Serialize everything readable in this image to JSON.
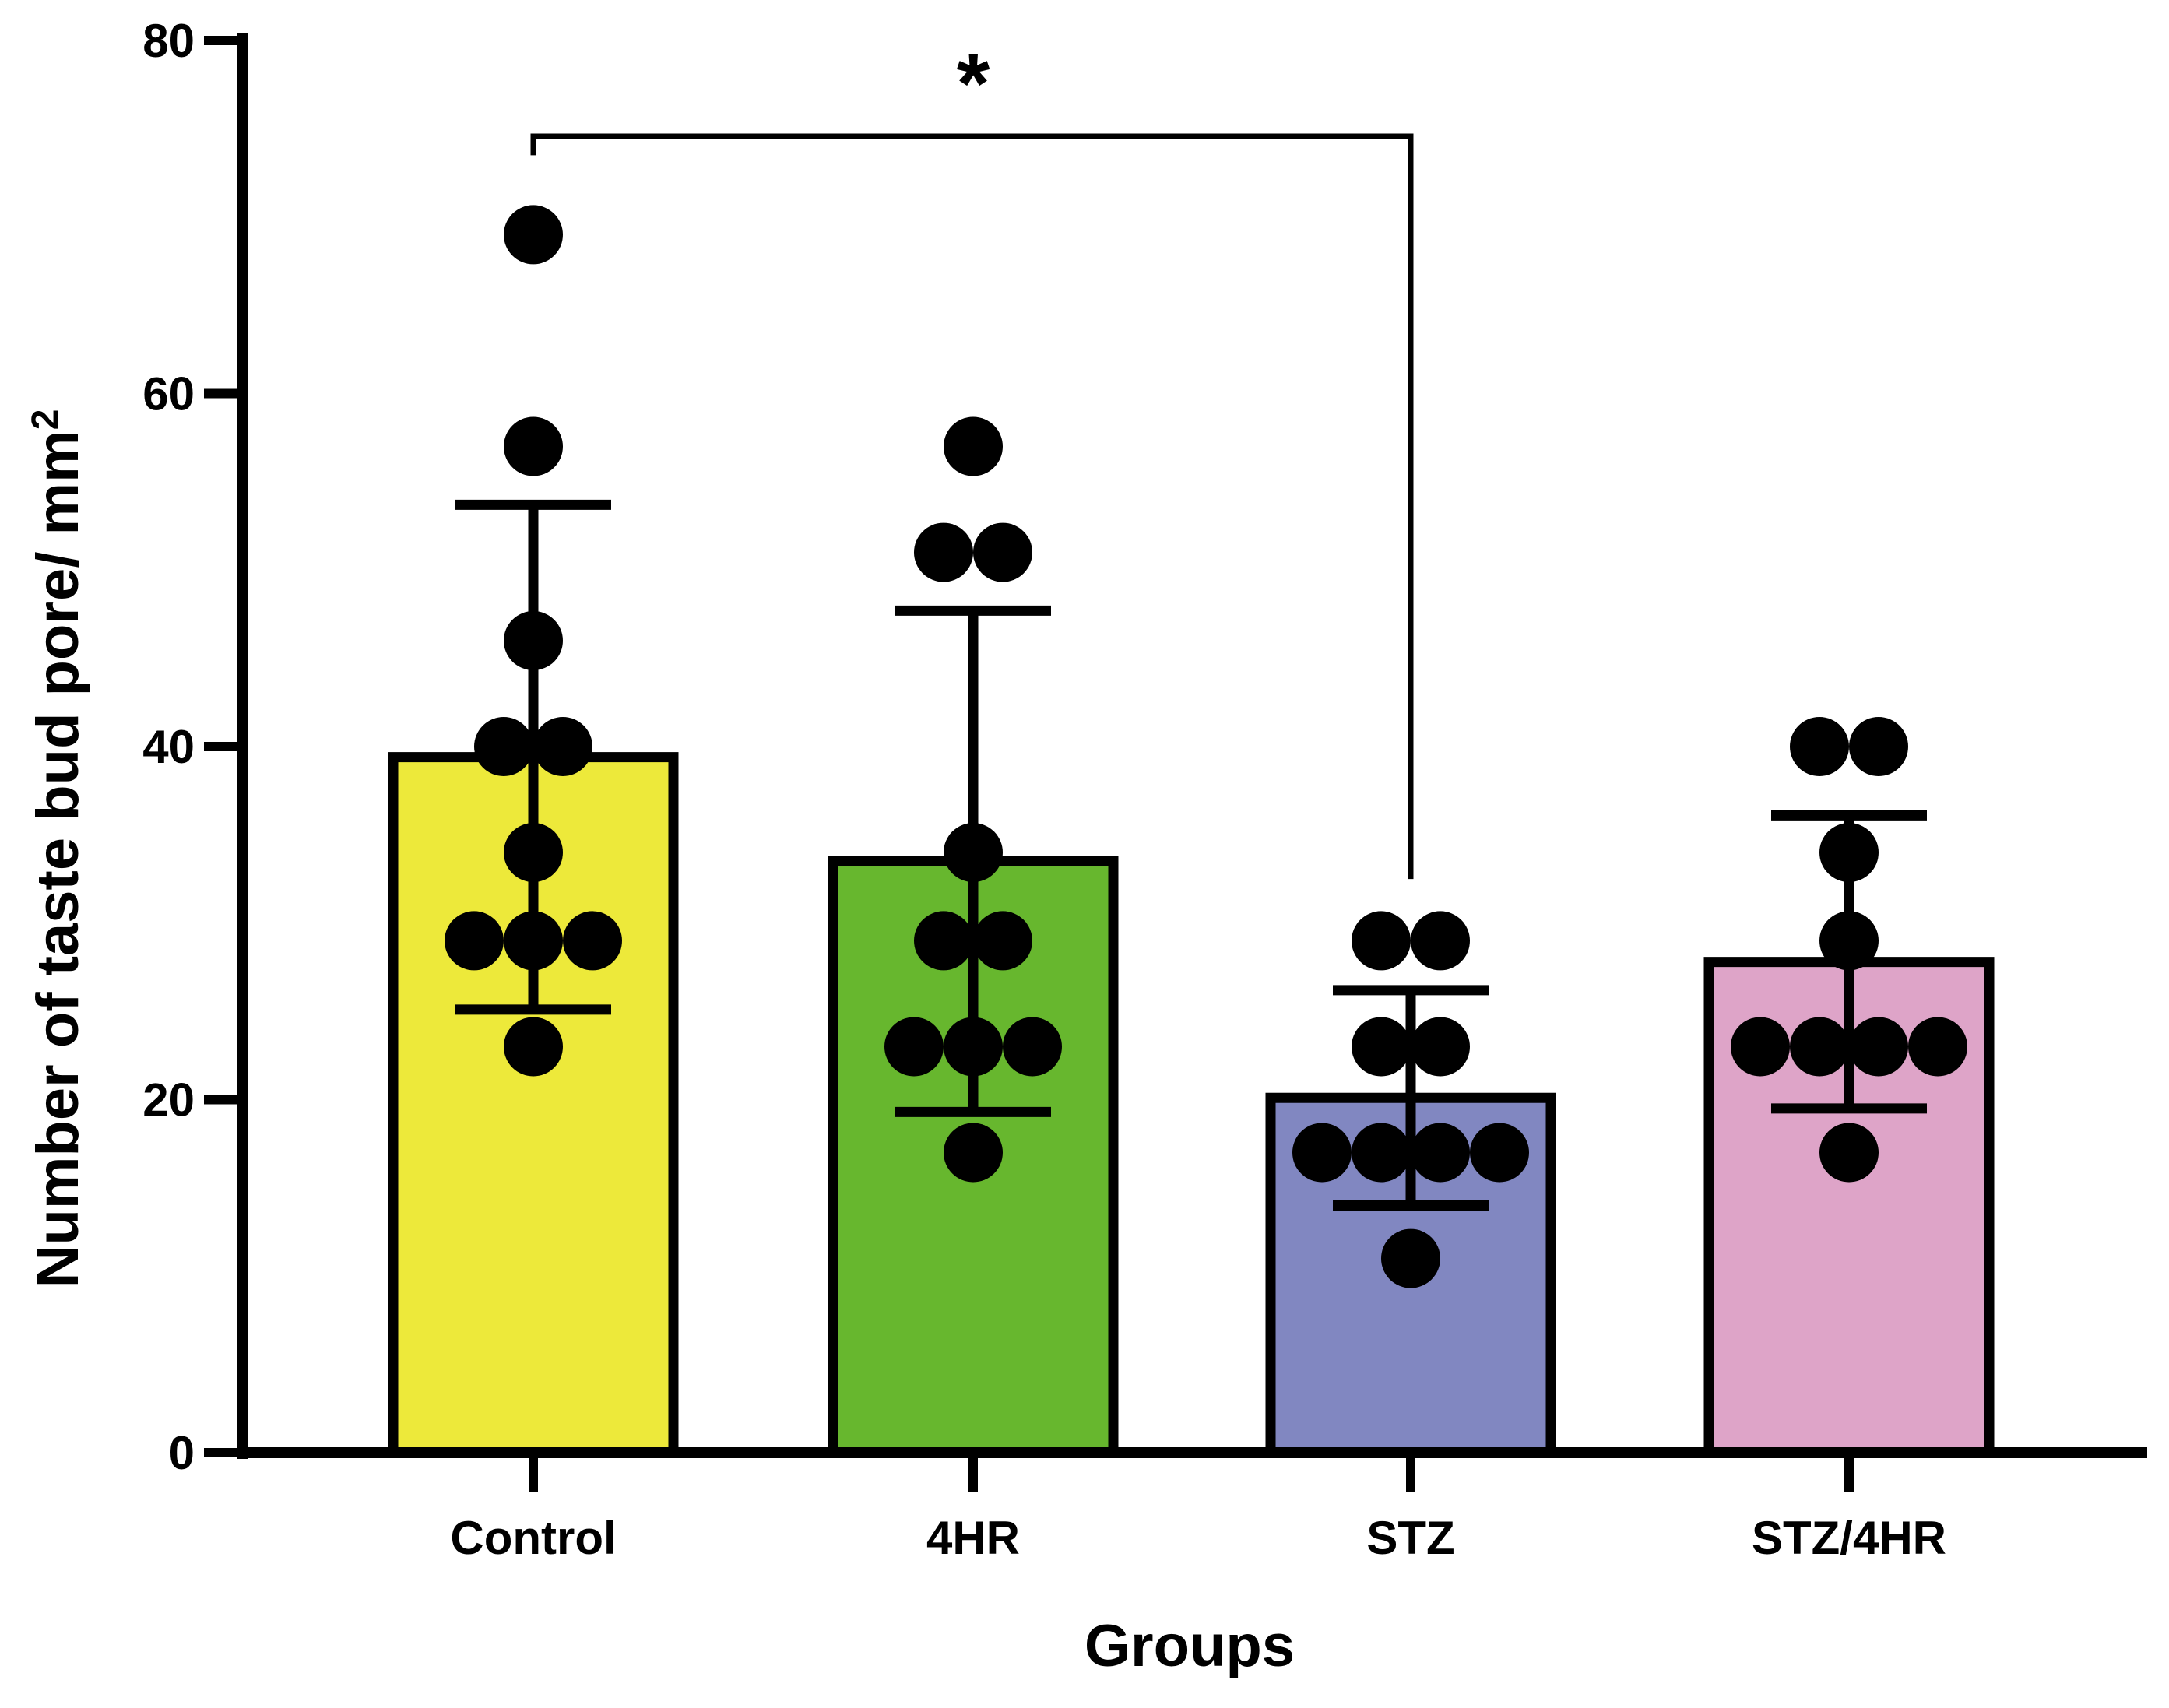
{
  "chart_data": {
    "type": "bar",
    "categories": [
      "Control",
      "4HR",
      "STZ",
      "STZ/4HR"
    ],
    "series": [
      {
        "values": [
          39.4,
          33.5,
          20.1,
          27.8
        ],
        "sd": [
          14.3,
          14.2,
          6.1,
          8.3
        ],
        "colors": [
          "#ede93a",
          "#67b72e",
          "#8187c1",
          "#dea4c8"
        ],
        "points": [
          [
            69,
            57,
            46,
            40,
            40,
            34,
            29,
            29,
            29,
            23
          ],
          [
            57,
            51,
            51,
            34,
            29,
            29,
            23,
            23,
            23,
            17
          ],
          [
            29,
            29,
            23,
            23,
            17,
            17,
            17,
            17,
            11
          ],
          [
            40,
            40,
            34,
            29,
            23,
            23,
            23,
            23,
            17
          ]
        ]
      }
    ],
    "xlabel": "Groups",
    "ylabel": {
      "main": "Number of taste bud pore/ mm",
      "superscript": "2"
    },
    "ylim": [
      0,
      80
    ],
    "yticks": [
      "0",
      "20",
      "40",
      "60",
      "80"
    ],
    "significance": {
      "from": "Control",
      "to": "STZ",
      "label": "*"
    },
    "grid": false,
    "legend": "none"
  }
}
